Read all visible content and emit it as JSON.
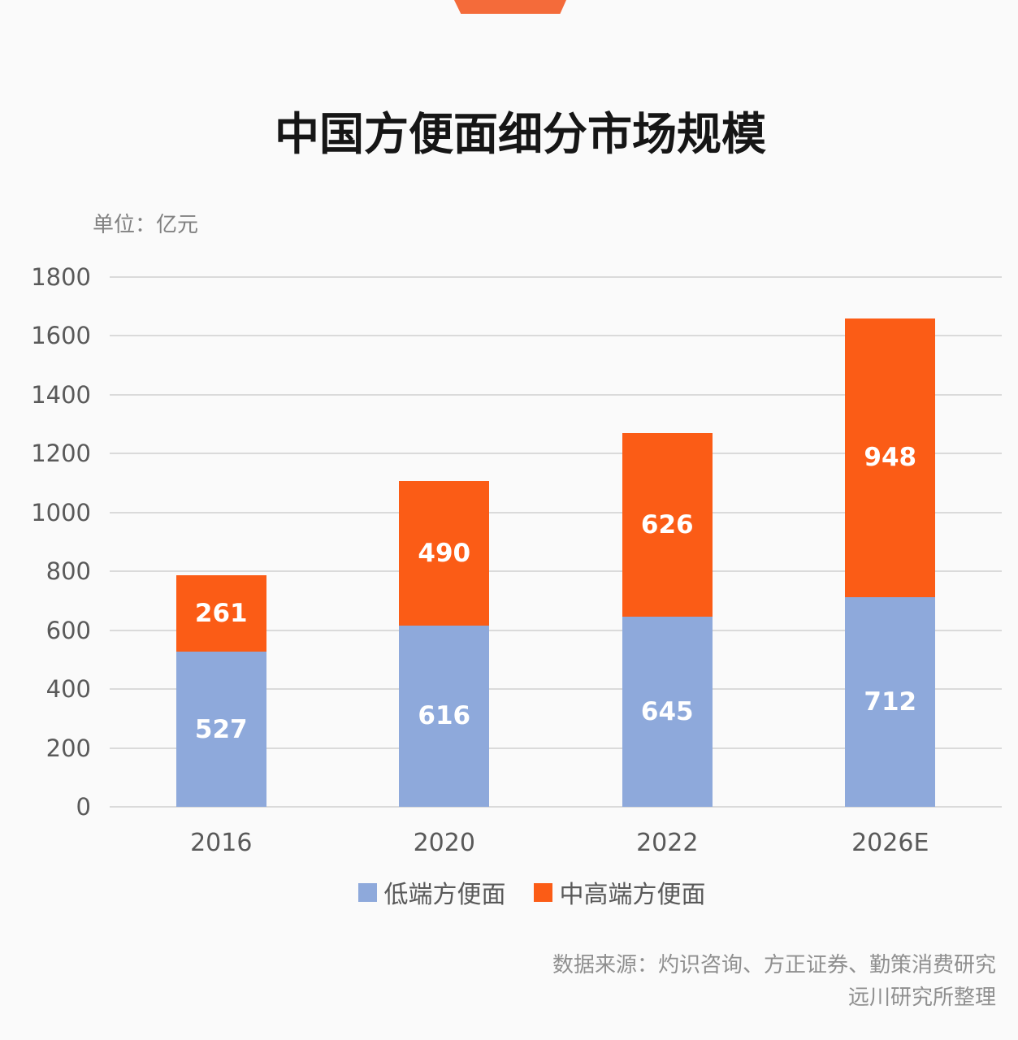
{
  "page": {
    "background_color": "#fafafa",
    "accent_color": "#f46b3a"
  },
  "title": "中国方便面细分市场规模",
  "unit_label": "单位：亿元",
  "chart_data": {
    "type": "bar",
    "stacked": true,
    "title": "中国方便面细分市场规模",
    "unit": "亿元",
    "categories": [
      "2016",
      "2020",
      "2022",
      "2026E"
    ],
    "series": [
      {
        "name": "低端方便面",
        "color": "#8ea9db",
        "values": [
          527,
          616,
          645,
          712
        ]
      },
      {
        "name": "中高端方便面",
        "color": "#fb5c16",
        "values": [
          261,
          490,
          626,
          948
        ]
      }
    ],
    "totals": [
      788,
      1106,
      1271,
      1660
    ],
    "ylim": [
      0,
      1800
    ],
    "yticks": [
      0,
      200,
      400,
      600,
      800,
      1000,
      1200,
      1400,
      1600,
      1800
    ],
    "grid": true,
    "legend_position": "bottom",
    "value_label_color": "#ffffff"
  },
  "legend": {
    "items": [
      {
        "label": "低端方便面",
        "color": "#8ea9db"
      },
      {
        "label": "中高端方便面",
        "color": "#fb5c16"
      }
    ]
  },
  "source": {
    "line1": "数据来源：灼识咨询、方正证券、勤策消费研究",
    "line2": "远川研究所整理"
  }
}
